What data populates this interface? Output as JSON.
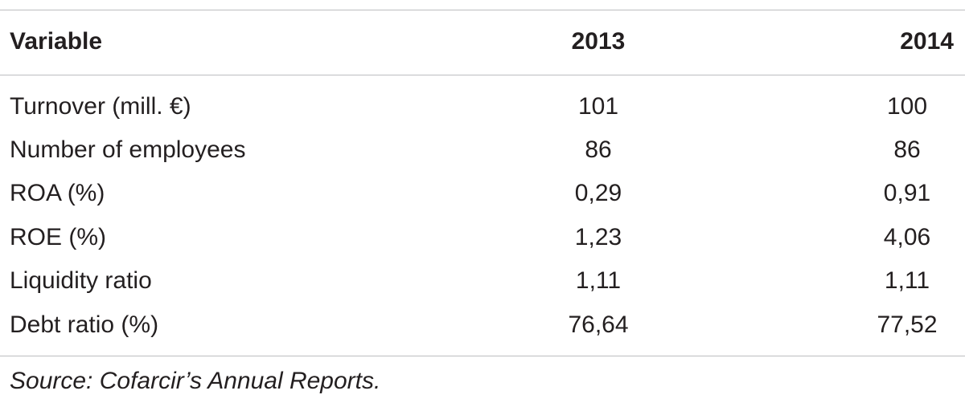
{
  "table": {
    "headers": [
      "Variable",
      "2013",
      "2014"
    ],
    "rows": [
      {
        "variable": "Turnover (mill. €)",
        "y2013": "101",
        "y2014": "100"
      },
      {
        "variable": "Number of employees",
        "y2013": "86",
        "y2014": "86"
      },
      {
        "variable": "ROA (%)",
        "y2013": "0,29",
        "y2014": "0,91"
      },
      {
        "variable": "ROE (%)",
        "y2013": "1,23",
        "y2014": "4,06"
      },
      {
        "variable": "Liquidity ratio",
        "y2013": "1,11",
        "y2014": "1,11"
      },
      {
        "variable": "Debt ratio (%)",
        "y2013": "76,64",
        "y2014": "77,52"
      }
    ],
    "source": "Source: Cofarcir’s Annual Reports."
  },
  "colors": {
    "text": "#231f20",
    "rule": "#bcbdc0"
  }
}
